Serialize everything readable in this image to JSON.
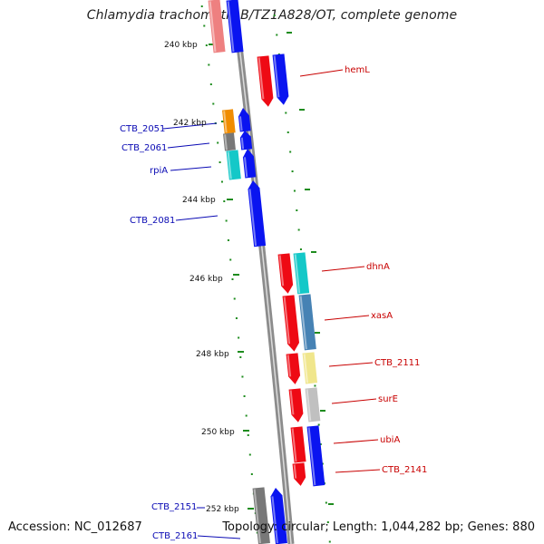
{
  "title": "Chlamydia trachomatis B/TZ1A828/OT, complete genome",
  "accession_text": "Accession: NC_012687",
  "summary_text": "Topology: circular; Length: 1,044,282 bp; Genes: 880",
  "colors": {
    "backbone": "#8c8c8c",
    "tick": "#1e8c1e",
    "label_reverse": "#0a0ab4",
    "label_forward": "#c80000",
    "blue": "#0a14f0",
    "red": "#ee0a14",
    "orange": "#f08c00",
    "gray": "#787878",
    "cyan": "#14c8c8",
    "steel": "#4682b4",
    "pale_yellow": "#f0e68c",
    "light_gray": "#c0c0c0",
    "pink": "#ee8080"
  },
  "scale_labels": [
    "240 kbp",
    "242 kbp",
    "244 kbp",
    "246 kbp",
    "248 kbp",
    "250 kbp",
    "252 kbp"
  ],
  "gene_labels": {
    "left": [
      "CTB_2051",
      "CTB_2061",
      "rpiA",
      "CTB_2081",
      "CTB_2151",
      "CTB_2161"
    ],
    "right": [
      "hemL",
      "dhnA",
      "xasA",
      "CTB_2111",
      "surE",
      "ubiA",
      "CTB_2141"
    ]
  }
}
